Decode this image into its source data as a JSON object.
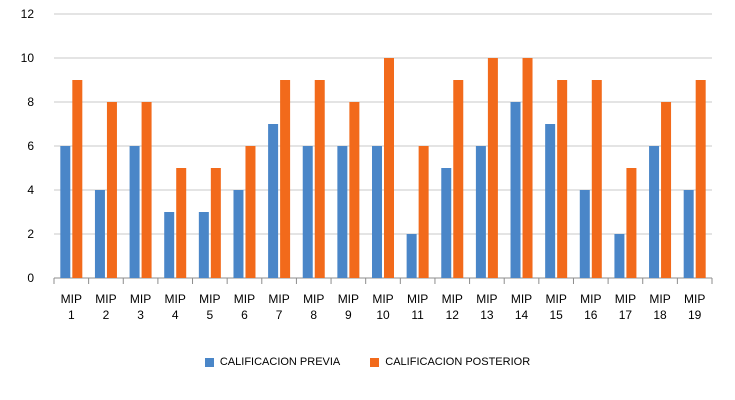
{
  "chart_data": {
    "type": "bar",
    "categories": [
      [
        "MIP",
        "1"
      ],
      [
        "MIP",
        "2"
      ],
      [
        "MIP",
        "3"
      ],
      [
        "MIP",
        "4"
      ],
      [
        "MIP",
        "5"
      ],
      [
        "MIP",
        "6"
      ],
      [
        "MIP",
        "7"
      ],
      [
        "MIP",
        "8"
      ],
      [
        "MIP",
        "9"
      ],
      [
        "MIP",
        "10"
      ],
      [
        "MIP",
        "11"
      ],
      [
        "MIP",
        "12"
      ],
      [
        "MIP",
        "13"
      ],
      [
        "MIP",
        "14"
      ],
      [
        "MIP",
        "15"
      ],
      [
        "MIP",
        "16"
      ],
      [
        "MIP",
        "17"
      ],
      [
        "MIP",
        "18"
      ],
      [
        "MIP",
        "19"
      ]
    ],
    "series": [
      {
        "name": "CALIFICACION PREVIA",
        "color": "#4a86c8",
        "values": [
          6,
          4,
          6,
          3,
          3,
          4,
          7,
          6,
          6,
          6,
          2,
          5,
          6,
          8,
          7,
          4,
          2,
          6,
          4
        ]
      },
      {
        "name": "CALIFICACION POSTERIOR",
        "color": "#f26a1b",
        "values": [
          9,
          8,
          8,
          5,
          5,
          6,
          9,
          9,
          8,
          10,
          6,
          9,
          10,
          10,
          9,
          9,
          5,
          8,
          9
        ]
      }
    ],
    "ylim": [
      0,
      12
    ],
    "yticks": [
      0,
      2,
      4,
      6,
      8,
      10,
      12
    ],
    "grid": true,
    "legend_position": "bottom"
  }
}
